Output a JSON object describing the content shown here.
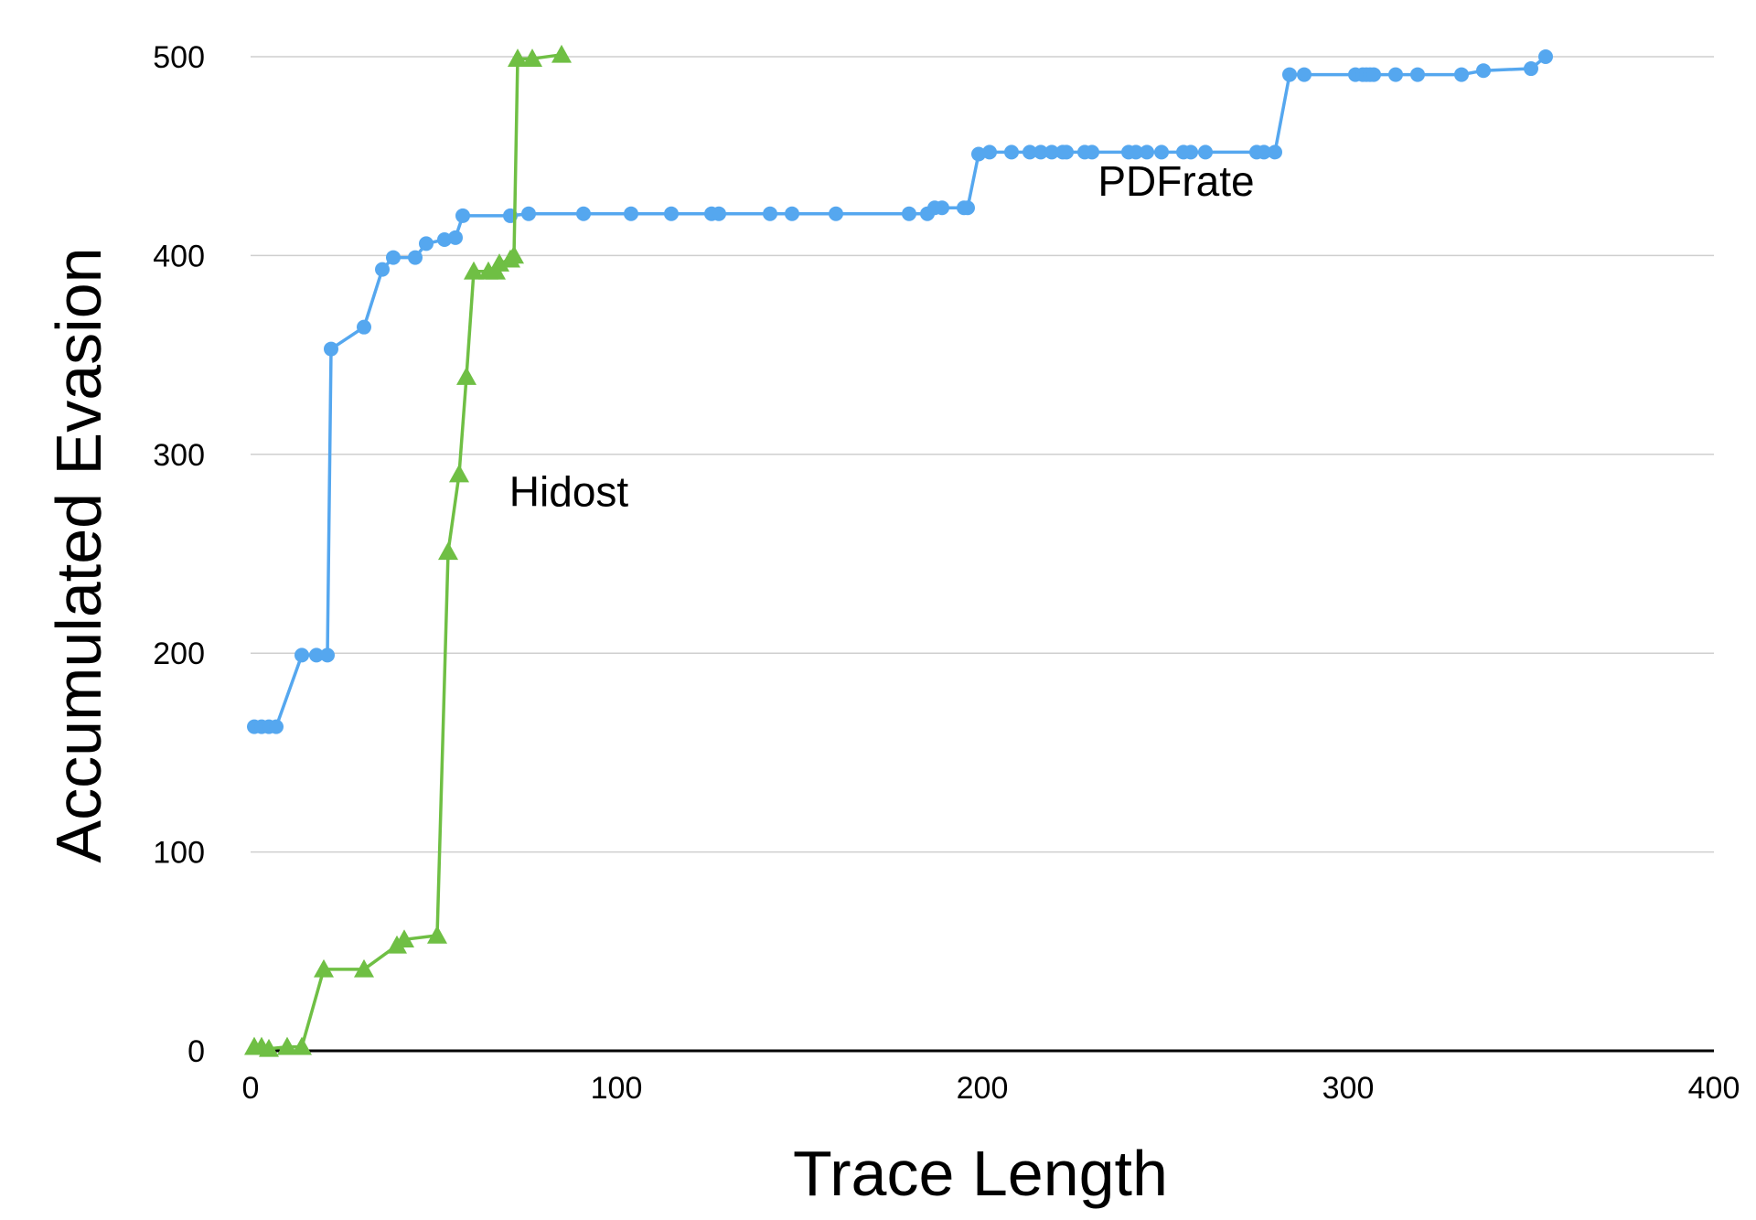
{
  "chart_data": {
    "type": "line",
    "xlabel": "Trace Length",
    "ylabel": "Accumulated Evasion",
    "xlim": [
      0,
      400
    ],
    "ylim": [
      0,
      500
    ],
    "xticks": [
      0,
      100,
      200,
      300,
      400
    ],
    "yticks": [
      0,
      100,
      200,
      300,
      400,
      500
    ],
    "grid": "horizontal",
    "series": [
      {
        "name": "PDFrate",
        "color": "#55a7ef",
        "marker": "circle",
        "x": [
          1,
          3,
          5,
          7,
          14,
          18,
          21,
          22,
          31,
          36,
          39,
          45,
          48,
          53,
          56,
          58,
          71,
          76,
          91,
          104,
          115,
          126,
          128,
          142,
          148,
          160,
          180,
          185,
          187,
          189,
          195,
          196,
          199,
          202,
          208,
          213,
          216,
          219,
          222,
          223,
          228,
          230,
          240,
          242,
          245,
          249,
          255,
          257,
          261,
          275,
          277,
          280,
          284,
          288,
          302,
          304,
          305,
          306,
          307,
          313,
          319,
          331,
          337,
          350,
          354
        ],
        "y": [
          163,
          163,
          163,
          163,
          199,
          199,
          199,
          353,
          364,
          393,
          399,
          399,
          406,
          408,
          409,
          420,
          420,
          421,
          421,
          421,
          421,
          421,
          421,
          421,
          421,
          421,
          421,
          421,
          424,
          424,
          424,
          424,
          451,
          452,
          452,
          452,
          452,
          452,
          452,
          452,
          452,
          452,
          452,
          452,
          452,
          452,
          452,
          452,
          452,
          452,
          452,
          452,
          491,
          491,
          491,
          491,
          491,
          491,
          491,
          491,
          491,
          491,
          493,
          494,
          500
        ]
      },
      {
        "name": "Hidost",
        "color": "#6fbf44",
        "marker": "triangle",
        "x": [
          1,
          3,
          5,
          10,
          14,
          20,
          31,
          40,
          42,
          51,
          54,
          57,
          59,
          61,
          65,
          67,
          68,
          71,
          72,
          73,
          77,
          85
        ],
        "y": [
          2,
          2,
          1,
          2,
          2,
          41,
          41,
          53,
          56,
          58,
          251,
          290,
          339,
          392,
          392,
          392,
          396,
          398,
          400,
          499,
          499,
          501
        ]
      }
    ],
    "annotations": [
      {
        "text": "PDFrate",
        "x": 253,
        "y": 430
      },
      {
        "text": "Hidost",
        "x": 87,
        "y": 274
      }
    ]
  }
}
